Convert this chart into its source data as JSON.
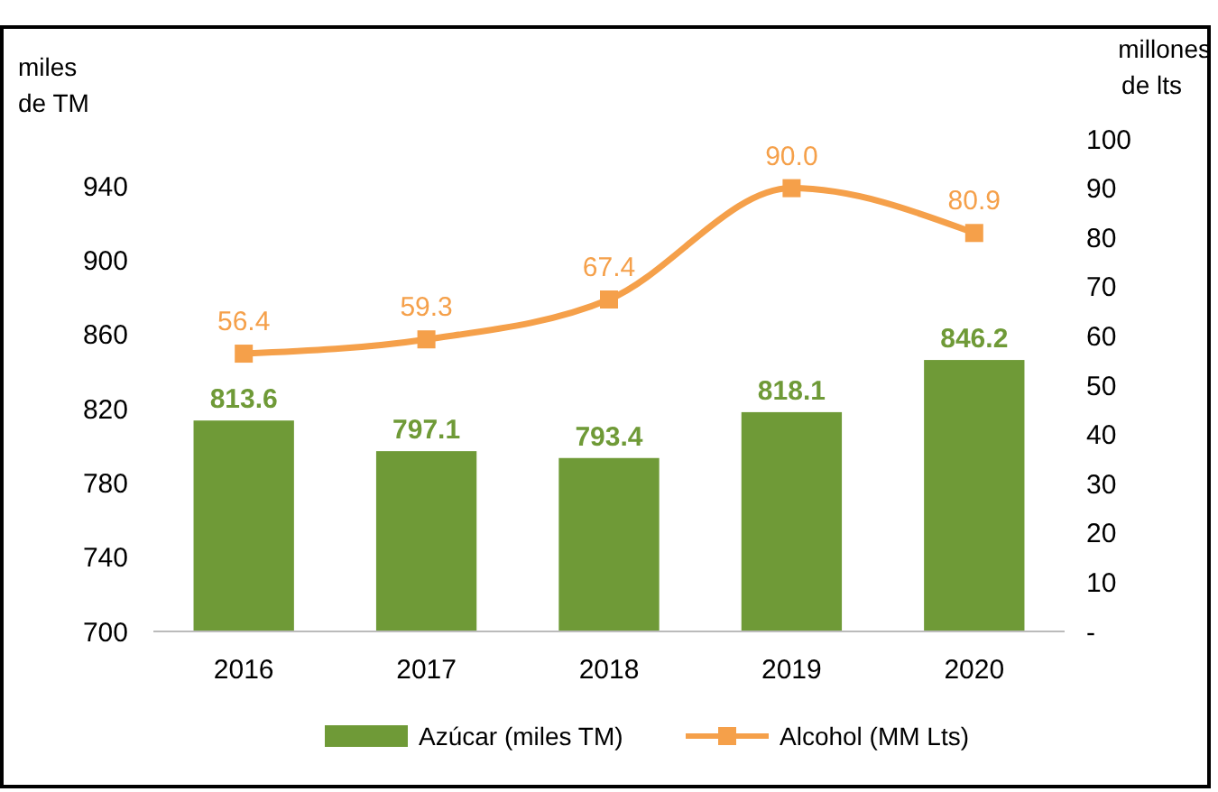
{
  "chart_data": {
    "type": "bar",
    "categories": [
      "2016",
      "2017",
      "2018",
      "2019",
      "2020"
    ],
    "ylabel": "miles\nde TM",
    "y2label": "millones\nde lts",
    "series": [
      {
        "name": "Azúcar (miles TM)",
        "color": "#6f9a37",
        "values": [
          813.6,
          797.1,
          793.4,
          818.1,
          846.2
        ]
      },
      {
        "name": "Alcohol (MM Lts)",
        "type": "line",
        "axis": "y2",
        "color": "#f5a04a",
        "marker": "square",
        "values": [
          56.4,
          59.3,
          67.4,
          90.0,
          80.9
        ],
        "value_labels": [
          "56.4",
          "59.3",
          "67.4",
          "90.0",
          "80.9"
        ]
      }
    ],
    "data_labels": true,
    "ylim": [
      700,
      940
    ],
    "yticks": [
      700,
      740,
      780,
      820,
      860,
      900,
      940
    ],
    "y2lim": [
      0,
      100
    ],
    "y2ticks": [
      {
        "value": 0,
        "label": "-"
      },
      10,
      20,
      30,
      40,
      50,
      60,
      70,
      80,
      90,
      100
    ],
    "grid": false,
    "legend": "bottom"
  }
}
